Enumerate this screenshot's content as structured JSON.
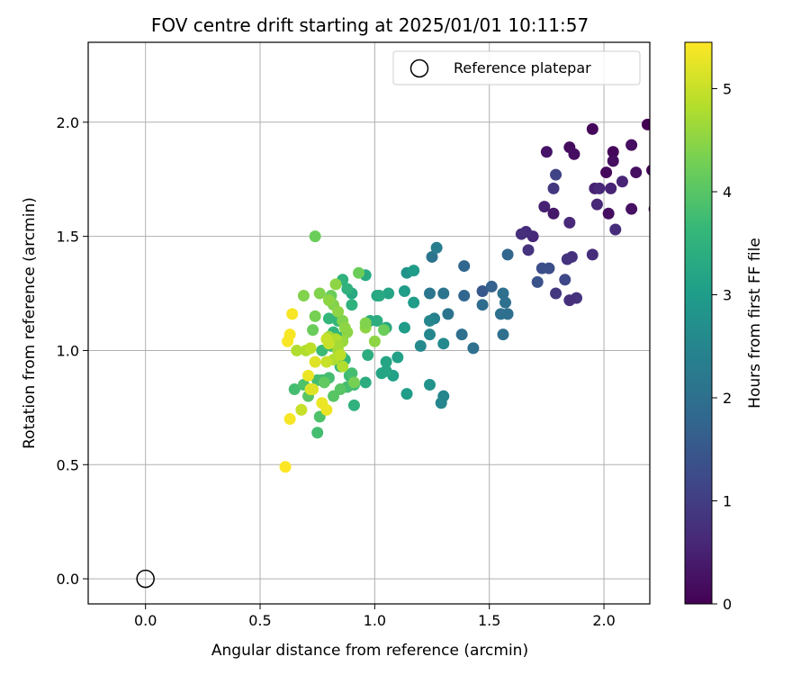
{
  "chart_data": {
    "type": "scatter",
    "title": "FOV centre drift starting at 2025/01/01 10:11:57",
    "xlabel": "Angular distance from reference (arcmin)",
    "ylabel": "Rotation from reference (arcmin)",
    "xlim": [
      -0.25,
      2.2
    ],
    "ylim": [
      -0.11,
      2.35
    ],
    "xticks": [
      0.0,
      0.5,
      1.0,
      1.5,
      2.0
    ],
    "xtick_labels": [
      "0.0",
      "0.5",
      "1.0",
      "1.5",
      "2.0"
    ],
    "yticks": [
      0.0,
      0.5,
      1.0,
      1.5,
      2.0
    ],
    "ytick_labels": [
      "0.0",
      "0.5",
      "1.0",
      "1.5",
      "2.0"
    ],
    "grid": true,
    "legend": {
      "position": "top-right",
      "entries": [
        {
          "label": "Reference platepar",
          "marker": "open-circle"
        }
      ]
    },
    "reference_point": {
      "x": 0.0,
      "y": 0.0
    },
    "colorbar": {
      "label": "Hours from first FF file",
      "range": [
        0,
        5.45
      ],
      "ticks": [
        0,
        1,
        2,
        3,
        4,
        5
      ],
      "tick_labels": [
        "0",
        "1",
        "2",
        "3",
        "4",
        "5"
      ],
      "colormap": "viridis",
      "colormap_stops": [
        "#440154",
        "#482878",
        "#3e4989",
        "#31688e",
        "#26828e",
        "#1f9e89",
        "#35b779",
        "#6ece58",
        "#b5de2b",
        "#fde725"
      ]
    },
    "series": [
      {
        "points": [
          [
            2.19,
            1.99,
            0.0
          ],
          [
            2.04,
            1.87,
            0.1
          ],
          [
            2.01,
            1.78,
            0.1
          ],
          [
            2.21,
            1.79,
            0.1
          ],
          [
            1.95,
            1.97,
            0.1
          ],
          [
            1.85,
            1.89,
            0.15
          ],
          [
            1.87,
            1.86,
            0.2
          ],
          [
            2.12,
            1.9,
            0.2
          ],
          [
            2.04,
            1.83,
            0.2
          ],
          [
            2.14,
            1.78,
            0.2
          ],
          [
            2.02,
            1.6,
            0.2
          ],
          [
            2.12,
            1.62,
            0.25
          ],
          [
            2.22,
            1.62,
            0.3
          ],
          [
            1.75,
            1.87,
            0.3
          ],
          [
            1.78,
            1.6,
            0.35
          ],
          [
            1.96,
            1.71,
            0.5
          ],
          [
            2.03,
            1.71,
            0.55
          ],
          [
            2.08,
            1.74,
            0.55
          ],
          [
            1.98,
            1.71,
            0.6
          ],
          [
            1.97,
            1.64,
            0.6
          ],
          [
            2.05,
            1.53,
            0.7
          ],
          [
            1.85,
            1.56,
            0.6
          ],
          [
            1.74,
            1.63,
            0.5
          ],
          [
            1.95,
            1.42,
            0.7
          ],
          [
            1.86,
            1.41,
            0.75
          ],
          [
            1.84,
            1.4,
            0.8
          ],
          [
            1.69,
            1.5,
            0.6
          ],
          [
            1.66,
            1.52,
            0.7
          ],
          [
            1.64,
            1.51,
            0.75
          ],
          [
            1.67,
            1.44,
            0.8
          ],
          [
            1.88,
            1.23,
            0.8
          ],
          [
            1.85,
            1.22,
            0.75
          ],
          [
            1.79,
            1.25,
            0.9
          ],
          [
            1.78,
            1.71,
            0.9
          ],
          [
            1.79,
            1.77,
            1.1
          ],
          [
            1.83,
            1.31,
            1.2
          ],
          [
            1.73,
            1.36,
            1.3
          ],
          [
            1.76,
            1.36,
            1.3
          ],
          [
            1.71,
            1.3,
            1.4
          ],
          [
            1.58,
            1.42,
            1.8
          ],
          [
            1.47,
            1.26,
            1.5
          ],
          [
            1.51,
            1.28,
            1.7
          ],
          [
            1.39,
            1.24,
            1.8
          ],
          [
            1.39,
            1.37,
            1.8
          ],
          [
            1.47,
            1.2,
            1.9
          ],
          [
            1.57,
            1.21,
            2.0
          ],
          [
            1.58,
            1.16,
            2.0
          ],
          [
            1.55,
            1.16,
            2.0
          ],
          [
            1.56,
            1.25,
            2.0
          ],
          [
            1.56,
            1.07,
            2.0
          ],
          [
            1.43,
            1.01,
            2.0
          ],
          [
            1.38,
            1.07,
            2.0
          ],
          [
            1.32,
            1.16,
            2.1
          ],
          [
            1.3,
            1.25,
            2.1
          ],
          [
            1.24,
            1.25,
            2.15
          ],
          [
            1.25,
            1.41,
            2.1
          ],
          [
            1.27,
            1.45,
            2.3
          ],
          [
            1.26,
            1.14,
            2.4
          ],
          [
            1.24,
            1.13,
            2.5
          ],
          [
            1.24,
            1.07,
            2.5
          ],
          [
            1.29,
            0.77,
            2.5
          ],
          [
            1.3,
            0.8,
            2.5
          ],
          [
            1.3,
            1.03,
            2.6
          ],
          [
            1.2,
            1.02,
            2.6
          ],
          [
            1.24,
            0.85,
            2.8
          ],
          [
            1.14,
            1.34,
            2.8
          ],
          [
            1.17,
            1.35,
            3.0
          ],
          [
            1.17,
            1.21,
            3.0
          ],
          [
            1.13,
            1.26,
            3.0
          ],
          [
            1.13,
            1.1,
            3.0
          ],
          [
            1.14,
            0.81,
            3.0
          ],
          [
            1.1,
            0.97,
            3.1
          ],
          [
            1.08,
            0.89,
            3.1
          ],
          [
            1.05,
            0.91,
            3.2
          ],
          [
            1.05,
            0.95,
            3.2
          ],
          [
            1.03,
            0.9,
            3.2
          ],
          [
            1.06,
            1.25,
            3.2
          ],
          [
            1.01,
            1.24,
            3.3
          ],
          [
            1.02,
            1.24,
            3.3
          ],
          [
            1.05,
            1.1,
            3.3
          ],
          [
            0.96,
            1.33,
            3.3
          ],
          [
            0.9,
            1.25,
            3.3
          ],
          [
            0.98,
            1.13,
            3.4
          ],
          [
            1.01,
            1.13,
            3.4
          ],
          [
            0.97,
            0.98,
            3.4
          ],
          [
            0.96,
            0.86,
            3.4
          ],
          [
            0.91,
            0.76,
            3.5
          ],
          [
            0.9,
            1.2,
            3.5
          ],
          [
            0.86,
            1.31,
            3.5
          ],
          [
            0.88,
            1.27,
            3.5
          ],
          [
            0.84,
            1.13,
            3.6
          ],
          [
            0.86,
            1.06,
            3.6
          ],
          [
            0.86,
            0.97,
            3.6
          ],
          [
            0.87,
            0.96,
            3.6
          ],
          [
            0.85,
            0.93,
            3.6
          ],
          [
            0.82,
            1.08,
            3.6
          ],
          [
            0.8,
            1.14,
            3.6
          ],
          [
            0.77,
            1.0,
            3.7
          ],
          [
            0.81,
            1.02,
            3.7
          ],
          [
            0.89,
            0.89,
            3.7
          ],
          [
            0.91,
            0.85,
            3.7
          ],
          [
            0.88,
            0.84,
            3.8
          ],
          [
            0.9,
            0.9,
            3.8
          ],
          [
            0.8,
            0.88,
            3.8
          ],
          [
            0.77,
            0.87,
            3.8
          ],
          [
            0.75,
            0.87,
            3.8
          ],
          [
            0.75,
            0.64,
            3.8
          ],
          [
            0.76,
            0.71,
            3.9
          ],
          [
            0.65,
            0.83,
            3.8
          ],
          [
            0.69,
            0.85,
            3.9
          ],
          [
            0.71,
            0.8,
            4.0
          ],
          [
            0.82,
            0.8,
            4.0
          ],
          [
            0.85,
            0.83,
            4.0
          ],
          [
            0.78,
            0.86,
            4.1
          ],
          [
            0.74,
            1.5,
            4.2
          ],
          [
            0.73,
            1.09,
            4.2
          ],
          [
            0.74,
            1.15,
            4.3
          ],
          [
            0.76,
            1.25,
            4.4
          ],
          [
            0.69,
            1.24,
            4.4
          ],
          [
            0.81,
            1.24,
            4.2
          ],
          [
            0.82,
            1.2,
            4.4
          ],
          [
            0.83,
            1.29,
            4.5
          ],
          [
            0.8,
            1.22,
            4.5
          ],
          [
            0.84,
            1.17,
            4.5
          ],
          [
            0.86,
            1.13,
            4.4
          ],
          [
            0.87,
            1.1,
            4.5
          ],
          [
            0.88,
            1.08,
            4.5
          ],
          [
            0.93,
            1.34,
            4.2
          ],
          [
            0.96,
            1.1,
            4.5
          ],
          [
            0.96,
            1.12,
            4.4
          ],
          [
            1.0,
            1.04,
            4.5
          ],
          [
            1.04,
            1.09,
            4.2
          ],
          [
            0.91,
            0.86,
            4.3
          ],
          [
            0.86,
            1.04,
            4.6
          ],
          [
            0.84,
            1.0,
            4.7
          ],
          [
            0.8,
            1.06,
            4.7
          ],
          [
            0.83,
            1.05,
            4.8
          ],
          [
            0.84,
            1.02,
            4.7
          ],
          [
            0.82,
            0.96,
            4.8
          ],
          [
            0.85,
            0.98,
            4.9
          ],
          [
            0.86,
            0.93,
            4.8
          ],
          [
            0.7,
            1.0,
            4.8
          ],
          [
            0.66,
            1.0,
            4.8
          ],
          [
            0.72,
            1.01,
            4.9
          ],
          [
            0.79,
            1.05,
            5.0
          ],
          [
            0.8,
            1.03,
            5.0
          ],
          [
            0.79,
            0.95,
            5.0
          ],
          [
            0.74,
            0.95,
            5.2
          ],
          [
            0.68,
            0.74,
            5.0
          ],
          [
            0.73,
            0.83,
            5.2
          ],
          [
            0.72,
            0.83,
            5.2
          ],
          [
            0.77,
            0.77,
            5.3
          ],
          [
            0.79,
            0.74,
            5.3
          ],
          [
            0.71,
            0.89,
            5.3
          ],
          [
            0.64,
            1.16,
            5.4
          ],
          [
            0.63,
            1.07,
            5.4
          ],
          [
            0.62,
            1.04,
            5.4
          ],
          [
            0.63,
            0.7,
            5.4
          ],
          [
            0.61,
            0.49,
            5.45
          ]
        ]
      }
    ]
  }
}
